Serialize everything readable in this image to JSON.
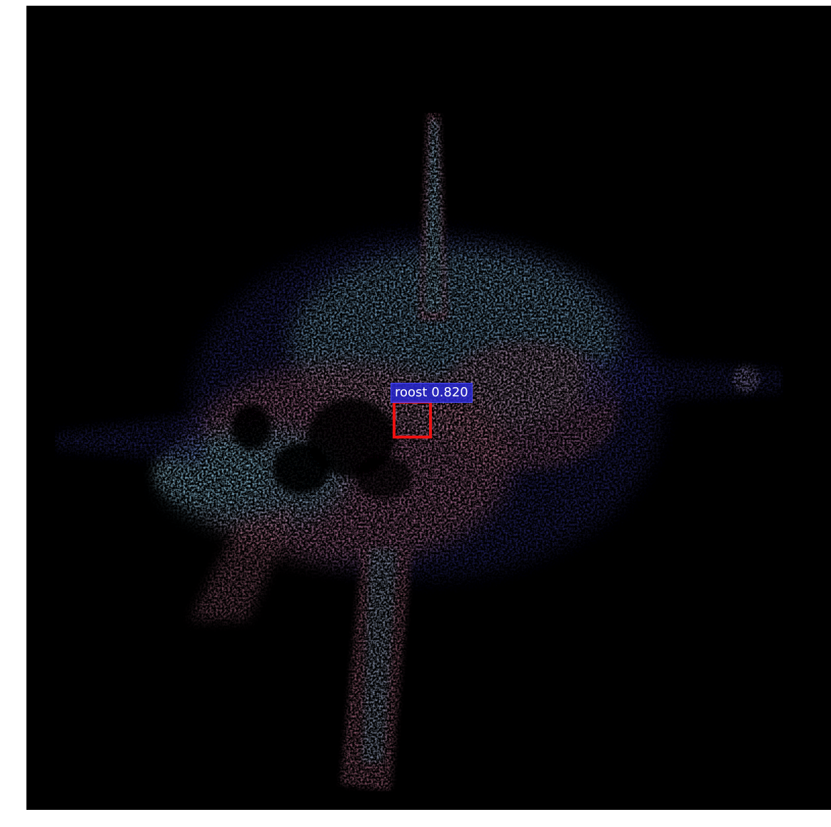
{
  "detection": {
    "label": "roost 0.820",
    "class": "roost",
    "score": 0.82,
    "box_color": "#ee1111",
    "label_bg": "#2828d2"
  },
  "colors": {
    "background": "#000000",
    "page": "#ffffff",
    "echo_cyan": "#7fb4cf",
    "echo_pink": "#c77a96",
    "echo_blue": "#3a3aa8"
  }
}
